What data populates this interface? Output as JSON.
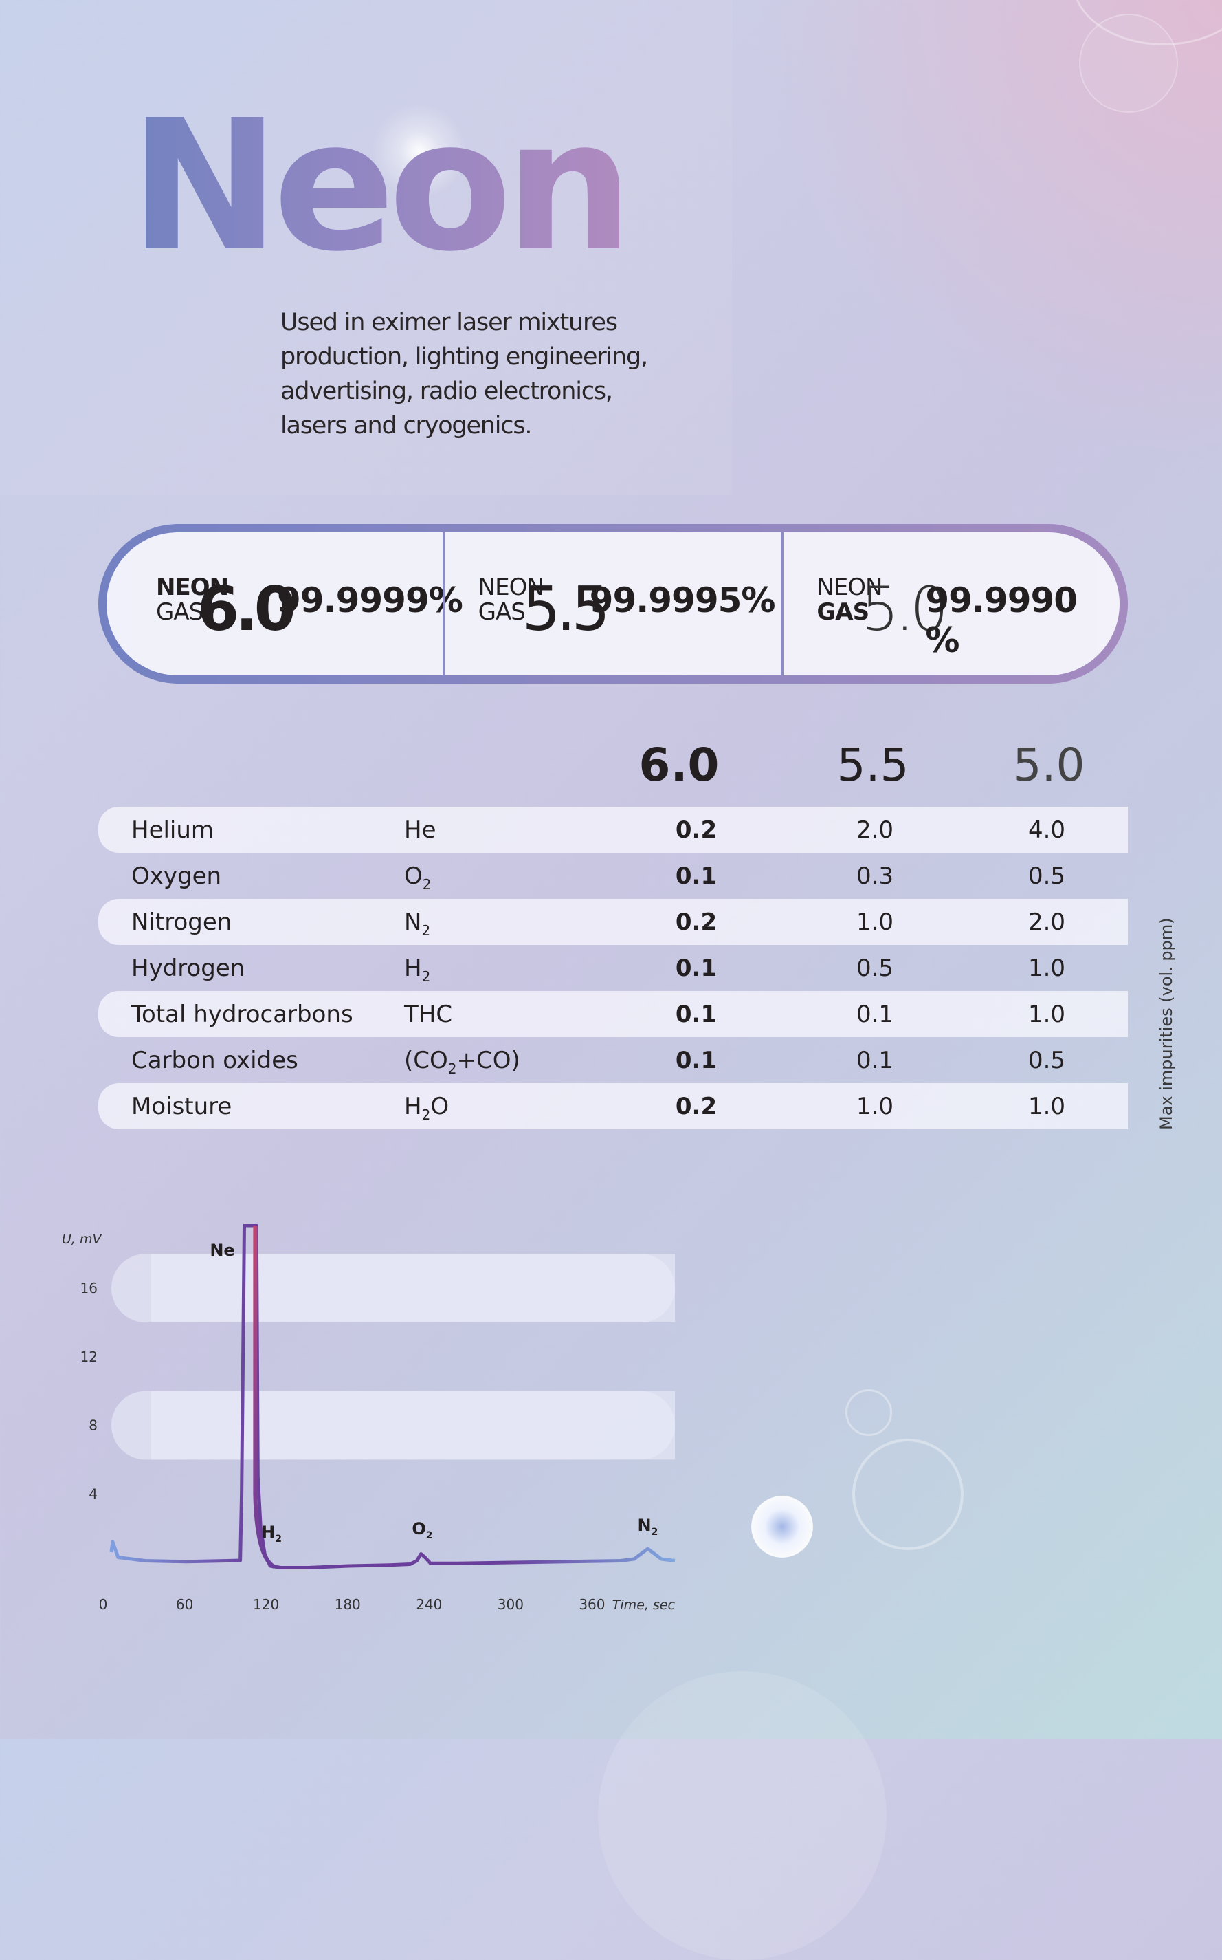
{
  "title": "Neon",
  "description": [
    "Used in eximer laser mixtures",
    "production, lighting engineering,",
    "advertising, radio electronics,",
    "lasers and cryogenics."
  ],
  "grades": [
    {
      "word1": "NEON",
      "word2": "GAS",
      "grade": "6.0",
      "purity": "99.9999%"
    },
    {
      "word1": "NEON",
      "word2": "GAS",
      "grade": "5.5",
      "purity": "99.9995%"
    },
    {
      "word1": "NEON",
      "word2": "GAS",
      "grade": "5.0",
      "purity": "99.9990 %"
    }
  ],
  "table": {
    "columns": [
      "6.0",
      "5.5",
      "5.0"
    ],
    "side_label": "Max impurities (vol. ppm)",
    "rows": [
      {
        "name": "Helium",
        "formula": "He",
        "sub": "",
        "formula_tail": "",
        "values": [
          "0.2",
          "2.0",
          "4.0"
        ]
      },
      {
        "name": "Oxygen",
        "formula": "O",
        "sub": "2",
        "formula_tail": "",
        "values": [
          "0.1",
          "0.3",
          "0.5"
        ]
      },
      {
        "name": "Nitrogen",
        "formula": "N",
        "sub": "2",
        "formula_tail": "",
        "values": [
          "0.2",
          "1.0",
          "2.0"
        ]
      },
      {
        "name": "Hydrogen",
        "formula": "H",
        "sub": "2",
        "formula_tail": "",
        "values": [
          "0.1",
          "0.5",
          "1.0"
        ]
      },
      {
        "name": "Total hydrocarbons",
        "formula": "THC",
        "sub": "",
        "formula_tail": "",
        "values": [
          "0.1",
          "0.1",
          "1.0"
        ]
      },
      {
        "name": "Carbon oxides",
        "formula": "(CO",
        "sub": "2",
        "formula_tail": "+CO)",
        "values": [
          "0.1",
          "0.1",
          "0.5"
        ]
      },
      {
        "name": "Moisture",
        "formula": "H",
        "sub": "2",
        "formula_tail": "O",
        "values": [
          "0.2",
          "1.0",
          "1.0"
        ]
      }
    ]
  },
  "chart_data": {
    "type": "line",
    "ylabel": "U, mV",
    "xlabel": "Time, sec",
    "xlim": [
      0,
      420
    ],
    "ylim": [
      0,
      17.5
    ],
    "xticks": [
      "0",
      "60",
      "120",
      "180",
      "240",
      "300",
      "360"
    ],
    "yticks": [
      "4",
      "8",
      "12",
      "16"
    ],
    "grid_bands": [
      [
        6,
        10
      ],
      [
        14,
        18
      ]
    ],
    "peaks": [
      {
        "label": "Ne",
        "x": 104,
        "y": 17.5
      },
      {
        "label": "H",
        "sub": "2",
        "x": 123,
        "y": 0.4
      },
      {
        "label": "O",
        "sub": "2",
        "x": 234,
        "y": 0.6
      },
      {
        "label": "N",
        "sub": "2",
        "x": 400,
        "y": 0.8
      }
    ],
    "series": [
      {
        "x": [
          5,
          6,
          10,
          30,
          60,
          90,
          100,
          101,
          102,
          103,
          104,
          105,
          106,
          107,
          108,
          109,
          110,
          111,
          112,
          113,
          115,
          118,
          122,
          130,
          150,
          180,
          210,
          225,
          230,
          233,
          236,
          240,
          260,
          300,
          340,
          380,
          390,
          395,
          400,
          405,
          410,
          420,
          450
        ],
        "y": [
          0.6,
          1.2,
          0.3,
          0.1,
          0.05,
          0.1,
          0.12,
          4,
          12,
          17.5,
          17.5,
          17.5,
          17.5,
          17.5,
          17.5,
          17.5,
          17.5,
          17.5,
          17.5,
          5,
          2,
          0.5,
          -0.2,
          -0.3,
          -0.3,
          -0.2,
          -0.15,
          -0.1,
          0.1,
          0.5,
          0.3,
          -0.05,
          -0.05,
          0,
          0.05,
          0.1,
          0.2,
          0.5,
          0.8,
          0.5,
          0.2,
          0.1,
          0.1
        ],
        "colors": [
          "#7f9fe0",
          "#6a3f9c",
          "#c0456f"
        ]
      }
    ]
  }
}
